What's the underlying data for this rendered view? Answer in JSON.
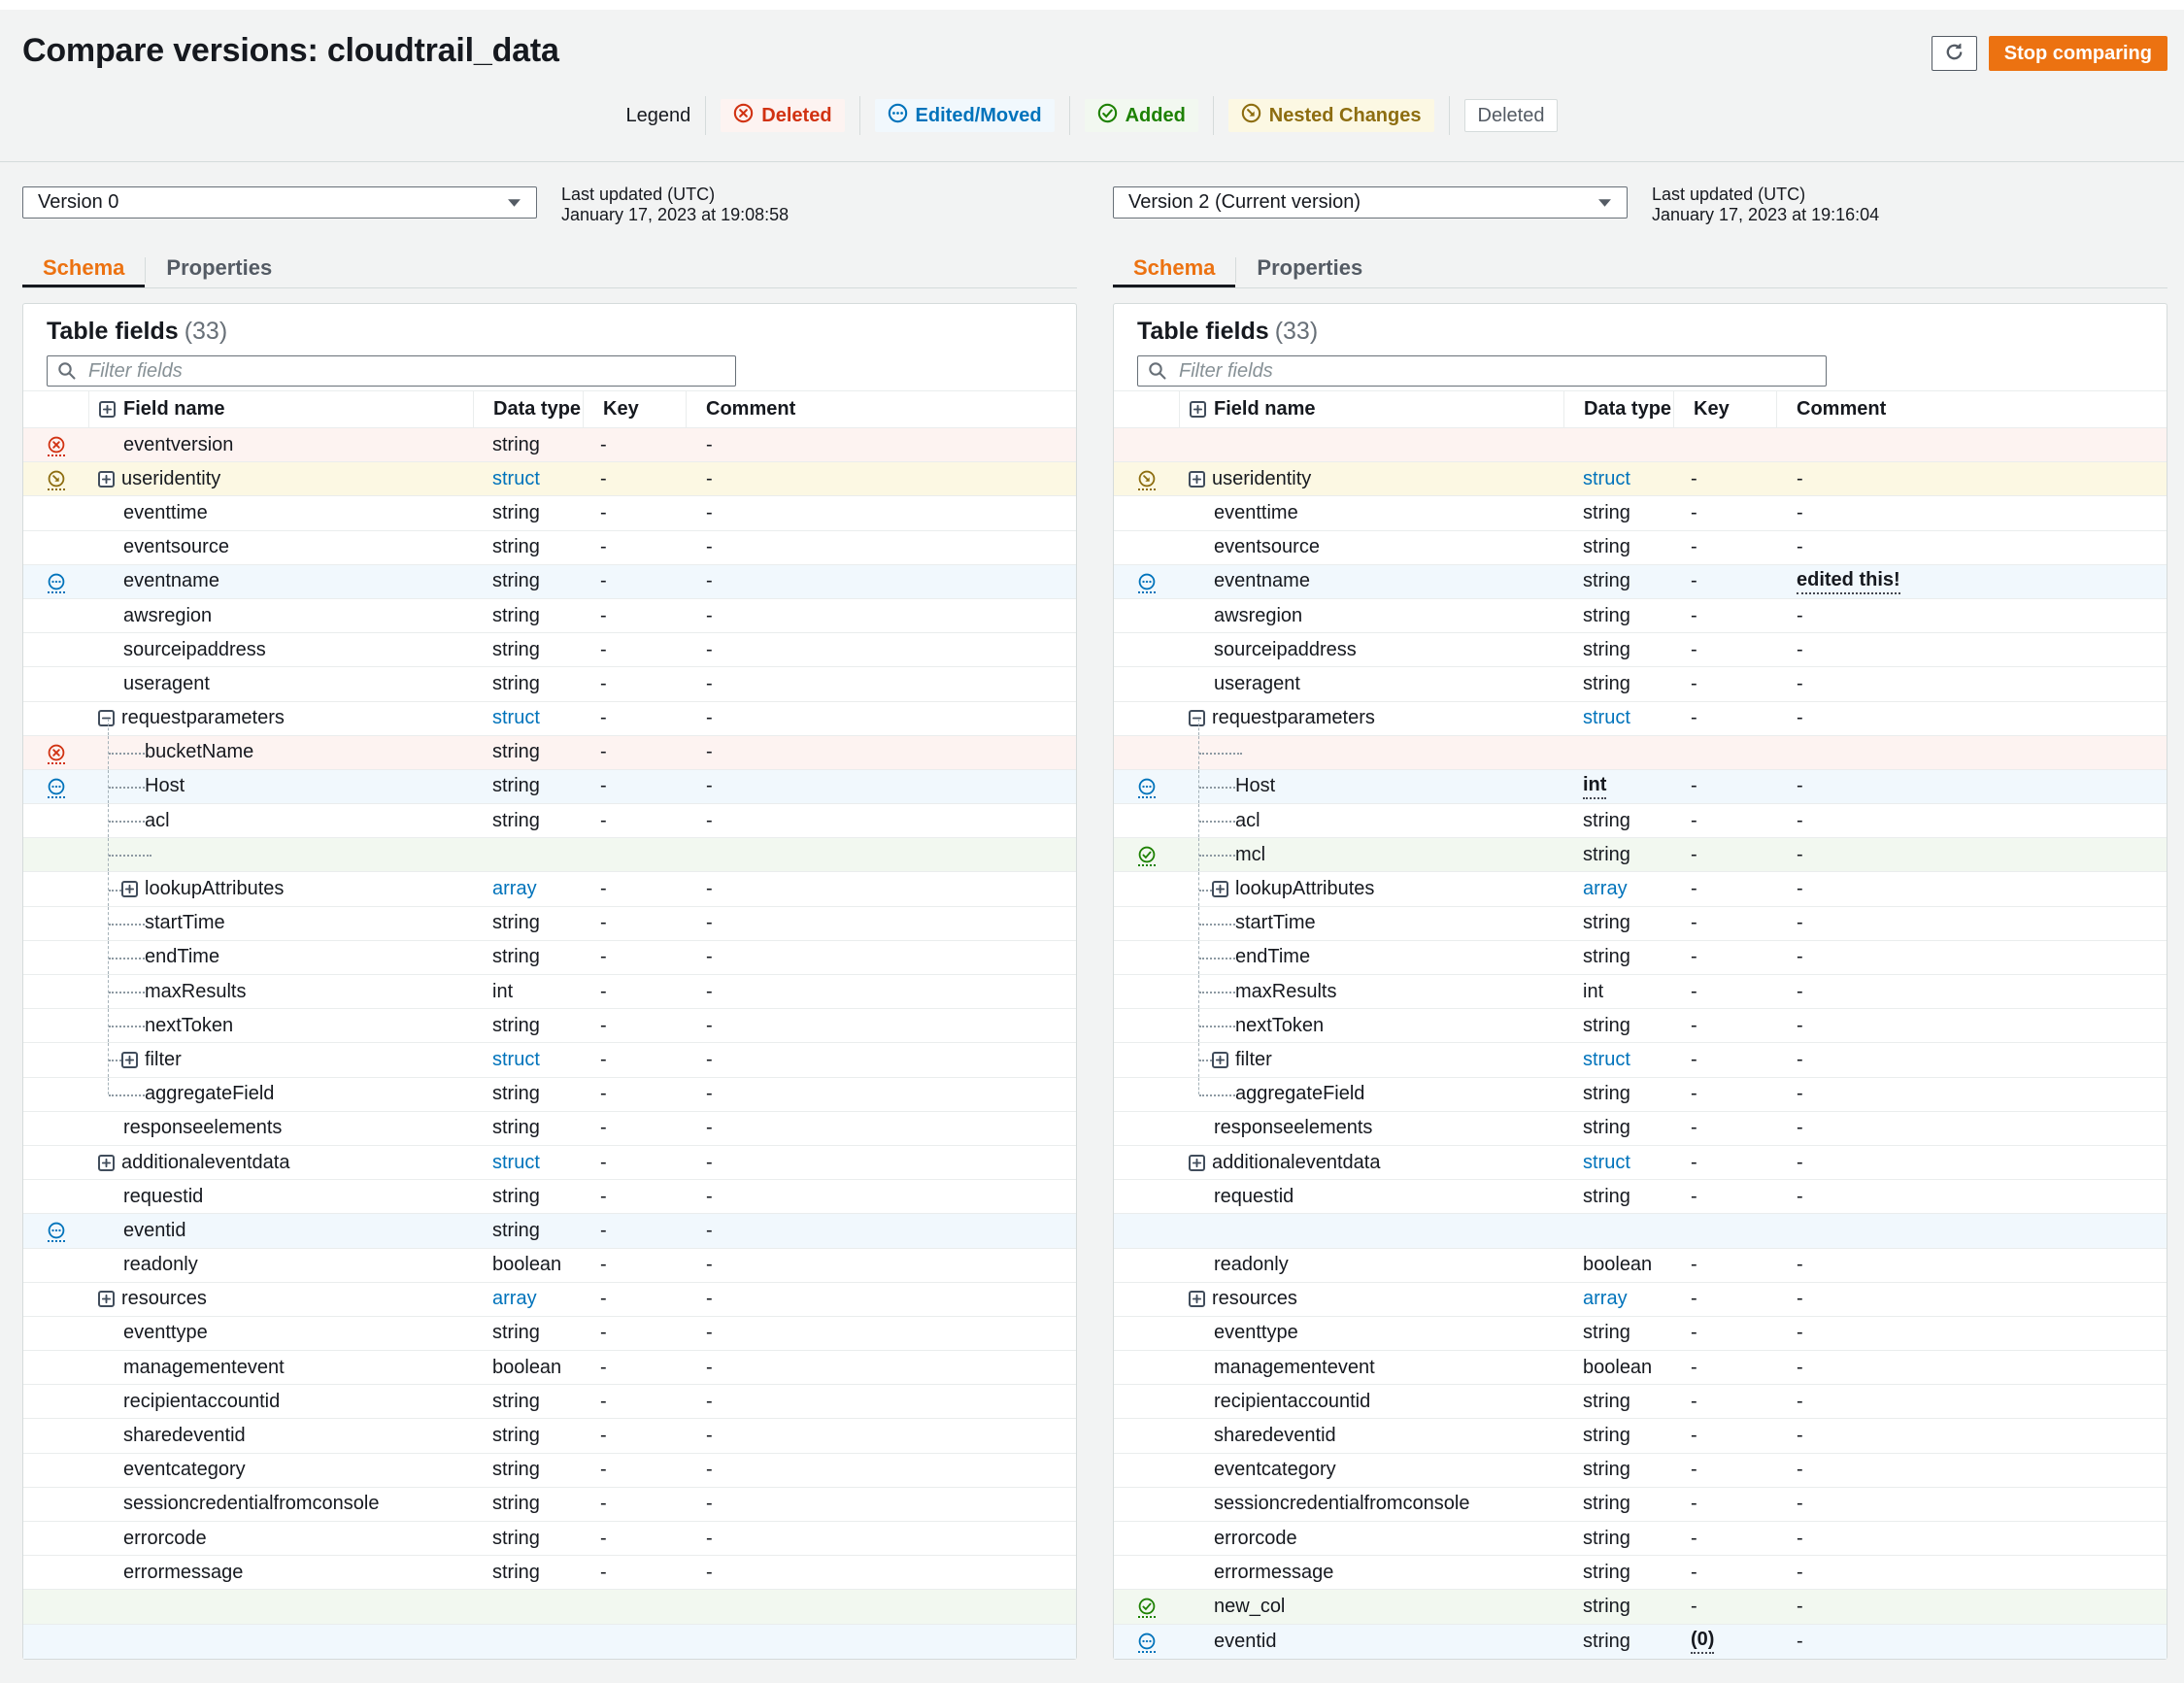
{
  "page": {
    "title": "Compare versions: cloudtrail_data"
  },
  "header": {
    "stop_button": "Stop comparing"
  },
  "legend": {
    "label": "Legend",
    "items": [
      {
        "id": "deleted",
        "label": "Deleted",
        "style": "deleted",
        "icon": "deleted-icon"
      },
      {
        "id": "edited",
        "label": "Edited/Moved",
        "style": "edited",
        "icon": "edited-icon"
      },
      {
        "id": "added",
        "label": "Added",
        "style": "added",
        "icon": "added-icon"
      },
      {
        "id": "nested",
        "label": "Nested Changes",
        "style": "nested",
        "icon": "nested-changes-icon"
      },
      {
        "id": "deleted-plain",
        "label": "Deleted",
        "style": "plain",
        "icon": ""
      }
    ]
  },
  "colors": {
    "deleted": "#d13212",
    "edited": "#0073bb",
    "added": "#1d8102",
    "nested": "#8d6d10",
    "accent": "#ec7211",
    "link": "#0073bb"
  },
  "columns": [
    "Field name",
    "Data type",
    "Key",
    "Comment"
  ],
  "panels": [
    {
      "version_label": "Version 0",
      "last_updated_label": "Last updated (UTC)",
      "last_updated_value": "January 17, 2023 at 19:08:58",
      "tabs": [
        "Schema",
        "Properties"
      ],
      "table_title": "Table fields",
      "table_count": "(33)",
      "filter_placeholder": "Filter fields",
      "rows": [
        {
          "n": "eventversion",
          "t": "string",
          "k": "-",
          "c": "-",
          "s": "deleted"
        },
        {
          "n": "useridentity",
          "t": "struct",
          "k": "-",
          "c": "-",
          "s": "nested",
          "b": "plus"
        },
        {
          "n": "eventtime",
          "t": "string",
          "k": "-",
          "c": "-"
        },
        {
          "n": "eventsource",
          "t": "string",
          "k": "-",
          "c": "-"
        },
        {
          "n": "eventname",
          "t": "string",
          "k": "-",
          "c": "-",
          "s": "edited"
        },
        {
          "n": "awsregion",
          "t": "string",
          "k": "-",
          "c": "-"
        },
        {
          "n": "sourceipaddress",
          "t": "string",
          "k": "-",
          "c": "-"
        },
        {
          "n": "useragent",
          "t": "string",
          "k": "-",
          "c": "-"
        },
        {
          "n": "requestparameters",
          "t": "struct",
          "k": "-",
          "c": "-",
          "b": "minus"
        },
        {
          "n": "bucketName",
          "t": "string",
          "k": "-",
          "c": "-",
          "s": "deleted",
          "l": 1
        },
        {
          "n": "Host",
          "t": "string",
          "k": "-",
          "c": "-",
          "s": "edited",
          "l": 1
        },
        {
          "n": "acl",
          "t": "string",
          "k": "-",
          "c": "-",
          "l": 1
        },
        {
          "e": true,
          "s": "added",
          "l": 1,
          "conn": true
        },
        {
          "n": "lookupAttributes",
          "t": "array",
          "k": "-",
          "c": "-",
          "l": 1,
          "b": "plus"
        },
        {
          "n": "startTime",
          "t": "string",
          "k": "-",
          "c": "-",
          "l": 1
        },
        {
          "n": "endTime",
          "t": "string",
          "k": "-",
          "c": "-",
          "l": 1
        },
        {
          "n": "maxResults",
          "t": "int",
          "k": "-",
          "c": "-",
          "l": 1
        },
        {
          "n": "nextToken",
          "t": "string",
          "k": "-",
          "c": "-",
          "l": 1
        },
        {
          "n": "filter",
          "t": "struct",
          "k": "-",
          "c": "-",
          "l": 1,
          "b": "plus"
        },
        {
          "n": "aggregateField",
          "t": "string",
          "k": "-",
          "c": "-",
          "l": 1,
          "last": true
        },
        {
          "n": "responseelements",
          "t": "string",
          "k": "-",
          "c": "-"
        },
        {
          "n": "additionaleventdata",
          "t": "struct",
          "k": "-",
          "c": "-",
          "b": "plus"
        },
        {
          "n": "requestid",
          "t": "string",
          "k": "-",
          "c": "-"
        },
        {
          "n": "eventid",
          "t": "string",
          "k": "-",
          "c": "-",
          "s": "edited"
        },
        {
          "n": "readonly",
          "t": "boolean",
          "k": "-",
          "c": "-"
        },
        {
          "n": "resources",
          "t": "array",
          "k": "-",
          "c": "-",
          "b": "plus"
        },
        {
          "n": "eventtype",
          "t": "string",
          "k": "-",
          "c": "-"
        },
        {
          "n": "managementevent",
          "t": "boolean",
          "k": "-",
          "c": "-"
        },
        {
          "n": "recipientaccountid",
          "t": "string",
          "k": "-",
          "c": "-"
        },
        {
          "n": "sharedeventid",
          "t": "string",
          "k": "-",
          "c": "-"
        },
        {
          "n": "eventcategory",
          "t": "string",
          "k": "-",
          "c": "-"
        },
        {
          "n": "sessioncredentialfromconsole",
          "t": "string",
          "k": "-",
          "c": "-"
        },
        {
          "n": "errorcode",
          "t": "string",
          "k": "-",
          "c": "-"
        },
        {
          "n": "errormessage",
          "t": "string",
          "k": "-",
          "c": "-"
        },
        {
          "e": true,
          "s": "added"
        },
        {
          "e": true,
          "s": "edited"
        }
      ]
    },
    {
      "version_label": "Version 2 (Current version)",
      "last_updated_label": "Last updated (UTC)",
      "last_updated_value": "January 17, 2023 at 19:16:04",
      "tabs": [
        "Schema",
        "Properties"
      ],
      "table_title": "Table fields",
      "table_count": "(33)",
      "filter_placeholder": "Filter fields",
      "rows": [
        {
          "e": true,
          "s": "deleted"
        },
        {
          "n": "useridentity",
          "t": "struct",
          "k": "-",
          "c": "-",
          "s": "nested",
          "b": "plus"
        },
        {
          "n": "eventtime",
          "t": "string",
          "k": "-",
          "c": "-"
        },
        {
          "n": "eventsource",
          "t": "string",
          "k": "-",
          "c": "-"
        },
        {
          "n": "eventname",
          "t": "string",
          "k": "-",
          "c": "edited this!",
          "s": "edited",
          "cc": true
        },
        {
          "n": "awsregion",
          "t": "string",
          "k": "-",
          "c": "-"
        },
        {
          "n": "sourceipaddress",
          "t": "string",
          "k": "-",
          "c": "-"
        },
        {
          "n": "useragent",
          "t": "string",
          "k": "-",
          "c": "-"
        },
        {
          "n": "requestparameters",
          "t": "struct",
          "k": "-",
          "c": "-",
          "b": "minus"
        },
        {
          "e": true,
          "s": "deleted",
          "l": 1,
          "conn": true
        },
        {
          "n": "Host",
          "t": "int",
          "k": "-",
          "c": "-",
          "s": "edited",
          "l": 1,
          "tc": true
        },
        {
          "n": "acl",
          "t": "string",
          "k": "-",
          "c": "-",
          "l": 1
        },
        {
          "n": "mcl",
          "t": "string",
          "k": "-",
          "c": "-",
          "s": "added",
          "l": 1
        },
        {
          "n": "lookupAttributes",
          "t": "array",
          "k": "-",
          "c": "-",
          "l": 1,
          "b": "plus"
        },
        {
          "n": "startTime",
          "t": "string",
          "k": "-",
          "c": "-",
          "l": 1
        },
        {
          "n": "endTime",
          "t": "string",
          "k": "-",
          "c": "-",
          "l": 1
        },
        {
          "n": "maxResults",
          "t": "int",
          "k": "-",
          "c": "-",
          "l": 1
        },
        {
          "n": "nextToken",
          "t": "string",
          "k": "-",
          "c": "-",
          "l": 1
        },
        {
          "n": "filter",
          "t": "struct",
          "k": "-",
          "c": "-",
          "l": 1,
          "b": "plus"
        },
        {
          "n": "aggregateField",
          "t": "string",
          "k": "-",
          "c": "-",
          "l": 1,
          "last": true
        },
        {
          "n": "responseelements",
          "t": "string",
          "k": "-",
          "c": "-"
        },
        {
          "n": "additionaleventdata",
          "t": "struct",
          "k": "-",
          "c": "-",
          "b": "plus"
        },
        {
          "n": "requestid",
          "t": "string",
          "k": "-",
          "c": "-"
        },
        {
          "e": true,
          "s": "edited"
        },
        {
          "n": "readonly",
          "t": "boolean",
          "k": "-",
          "c": "-"
        },
        {
          "n": "resources",
          "t": "array",
          "k": "-",
          "c": "-",
          "b": "plus"
        },
        {
          "n": "eventtype",
          "t": "string",
          "k": "-",
          "c": "-"
        },
        {
          "n": "managementevent",
          "t": "boolean",
          "k": "-",
          "c": "-"
        },
        {
          "n": "recipientaccountid",
          "t": "string",
          "k": "-",
          "c": "-"
        },
        {
          "n": "sharedeventid",
          "t": "string",
          "k": "-",
          "c": "-"
        },
        {
          "n": "eventcategory",
          "t": "string",
          "k": "-",
          "c": "-"
        },
        {
          "n": "sessioncredentialfromconsole",
          "t": "string",
          "k": "-",
          "c": "-"
        },
        {
          "n": "errorcode",
          "t": "string",
          "k": "-",
          "c": "-"
        },
        {
          "n": "errormessage",
          "t": "string",
          "k": "-",
          "c": "-"
        },
        {
          "n": "new_col",
          "t": "string",
          "k": "-",
          "c": "-",
          "s": "added"
        },
        {
          "n": "eventid",
          "t": "string",
          "k": "(0)",
          "c": "-",
          "s": "edited",
          "kc": true
        }
      ]
    }
  ]
}
